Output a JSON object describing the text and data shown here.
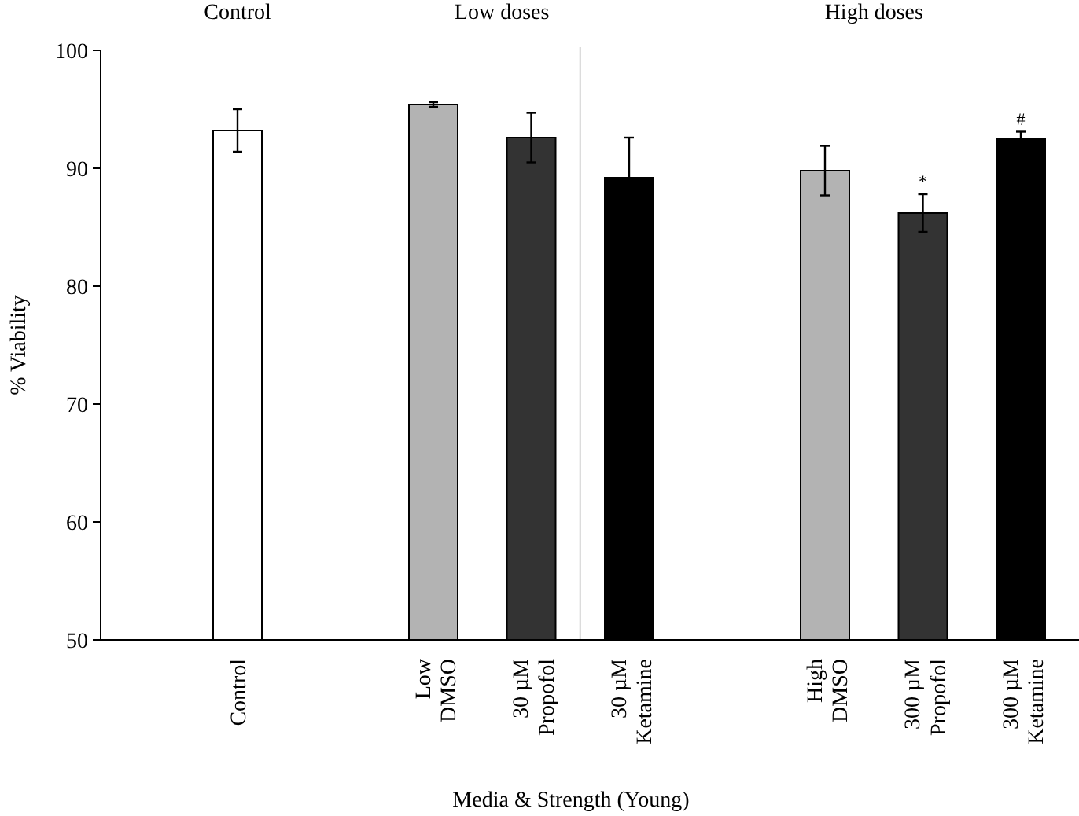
{
  "chart_data": {
    "type": "bar",
    "xlabel": "Media & Strength (Young)",
    "ylabel": "% Viability",
    "categories": [
      "Control",
      null,
      "Low DMSO",
      "30 µM Propofol",
      "30 µM Ketamine",
      null,
      "High DMSO",
      "300 µM Propofol",
      "300 µM Ketamine"
    ],
    "values": [
      93.2,
      null,
      95.4,
      92.6,
      89.2,
      null,
      89.8,
      86.2,
      92.5
    ],
    "errors": [
      1.8,
      null,
      0.2,
      2.1,
      3.4,
      null,
      2.1,
      1.6,
      0.6
    ],
    "colors": [
      "#ffffff",
      null,
      "#b3b3b3",
      "#333333",
      "#000000",
      null,
      "#b3b3b3",
      "#333333",
      "#000000"
    ],
    "ylim": [
      50,
      100
    ],
    "yticks": [
      50,
      60,
      70,
      80,
      90,
      100
    ],
    "grid": false,
    "annotations": [
      "Control",
      "Low doses",
      "High doses",
      {
        "text": "*",
        "x": "300 µM Propofol",
        "y": 88.4
      },
      {
        "text": "#",
        "x": "300 µM Ketamine",
        "y": 93.7
      }
    ]
  }
}
